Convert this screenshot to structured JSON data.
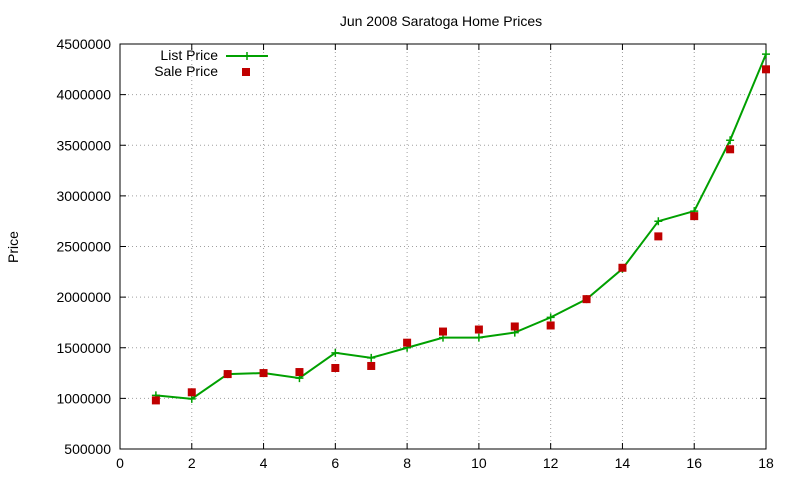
{
  "chart_data": {
    "type": "line",
    "title": "Jun 2008 Saratoga Home Prices",
    "xlabel": "",
    "ylabel": "Price",
    "xlim": [
      0,
      18
    ],
    "ylim": [
      500000,
      4500000
    ],
    "x_ticks": [
      0,
      2,
      4,
      6,
      8,
      10,
      12,
      14,
      16,
      18
    ],
    "y_ticks": [
      500000,
      1000000,
      1500000,
      2000000,
      2500000,
      3000000,
      3500000,
      4000000,
      4500000
    ],
    "grid": true,
    "legend_position": "top-left",
    "x": [
      1,
      2,
      3,
      4,
      5,
      6,
      7,
      8,
      9,
      10,
      11,
      12,
      13,
      14,
      15,
      16,
      17,
      18
    ],
    "series": [
      {
        "name": "List Price",
        "style": "line+cross",
        "color": "#00a000",
        "values": [
          1030000,
          995000,
          1240000,
          1250000,
          1200000,
          1450000,
          1400000,
          1500000,
          1600000,
          1600000,
          1650000,
          1800000,
          1980000,
          2280000,
          2750000,
          2850000,
          3550000,
          4400000
        ]
      },
      {
        "name": "Sale Price",
        "style": "square",
        "color": "#c00000",
        "values": [
          980000,
          1060000,
          1240000,
          1250000,
          1260000,
          1300000,
          1320000,
          1550000,
          1660000,
          1680000,
          1710000,
          1720000,
          1980000,
          2290000,
          2600000,
          2800000,
          3460000,
          4250000
        ]
      }
    ]
  }
}
